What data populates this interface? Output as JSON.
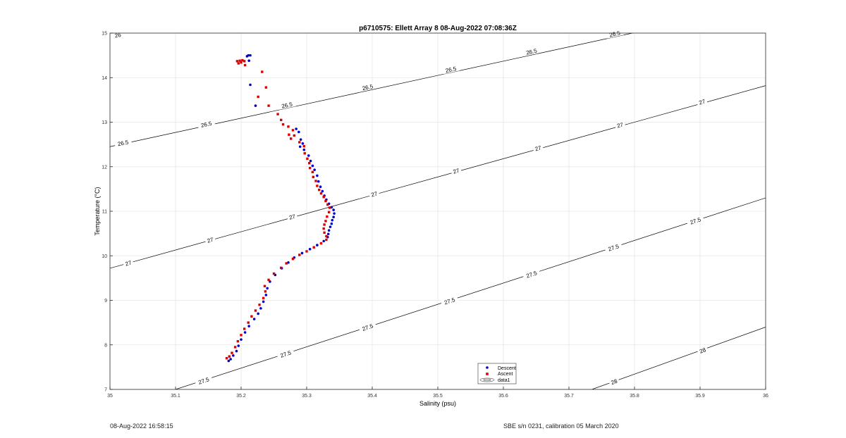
{
  "chart_data": {
    "type": "scatter",
    "title": "p6710575: Ellett Array 8 08-Aug-2022 07:08:36Z",
    "xlabel": "Salinity (psu)",
    "ylabel": "Temperature (°C)",
    "xlim": [
      35,
      36
    ],
    "ylim": [
      7,
      15
    ],
    "xticks": [
      "35",
      "35.1",
      "35.2",
      "35.3",
      "35.4",
      "35.5",
      "35.6",
      "35.7",
      "35.8",
      "35.9",
      "36"
    ],
    "yticks": [
      "7",
      "8",
      "9",
      "10",
      "11",
      "12",
      "13",
      "14",
      "15"
    ],
    "grid": true,
    "legend_position": "bottom-center",
    "legend": [
      "Descent",
      "Ascent",
      "data1"
    ],
    "colors": {
      "descent": "#0000cc",
      "ascent": "#dd0000",
      "contour": "#000000",
      "grid": "#e6e6e6"
    },
    "contours": [
      {
        "level": "26",
        "points": [
          [
            35.0,
            15.05
          ],
          [
            35.065,
            15.25
          ]
        ],
        "labels": [
          [
            35.012,
            14.95
          ]
        ]
      },
      {
        "level": "26.5",
        "points": [
          [
            35.0,
            12.45
          ],
          [
            36.0,
            15.65
          ]
        ],
        "labels": [
          [
            35.02,
            12.53
          ],
          [
            35.147,
            12.95
          ],
          [
            35.27,
            13.38
          ],
          [
            35.393,
            13.78
          ],
          [
            35.52,
            14.18
          ],
          [
            35.643,
            14.58
          ],
          [
            35.77,
            14.98
          ]
        ]
      },
      {
        "level": "27",
        "points": [
          [
            35.0,
            9.72
          ],
          [
            36.0,
            13.82
          ]
        ],
        "labels": [
          [
            35.028,
            9.83
          ],
          [
            35.153,
            10.35
          ],
          [
            35.278,
            10.87
          ],
          [
            35.403,
            11.38
          ],
          [
            35.528,
            11.9
          ],
          [
            35.653,
            12.41
          ],
          [
            35.778,
            12.93
          ],
          [
            35.903,
            13.45
          ]
        ]
      },
      {
        "level": "27.5",
        "points": [
          [
            35.1,
            7.0
          ],
          [
            36.0,
            11.3
          ]
        ],
        "labels": [
          [
            35.143,
            7.19
          ],
          [
            35.268,
            7.79
          ],
          [
            35.393,
            8.39
          ],
          [
            35.518,
            8.98
          ],
          [
            35.643,
            9.58
          ],
          [
            35.768,
            10.18
          ],
          [
            35.893,
            10.78
          ]
        ]
      },
      {
        "level": "28",
        "points": [
          [
            35.735,
            7.0
          ],
          [
            36.0,
            8.4
          ]
        ],
        "labels": [
          [
            35.769,
            7.17
          ],
          [
            35.904,
            7.87
          ]
        ]
      }
    ],
    "series": [
      {
        "name": "Descent",
        "points": [
          [
            35.211,
            14.5
          ],
          [
            35.214,
            14.5
          ],
          [
            35.209,
            14.48
          ],
          [
            35.212,
            14.38
          ],
          [
            35.214,
            13.84
          ],
          [
            35.222,
            13.37
          ],
          [
            35.284,
            12.85
          ],
          [
            35.288,
            12.78
          ],
          [
            35.291,
            12.61
          ],
          [
            35.294,
            12.52
          ],
          [
            35.29,
            12.45
          ],
          [
            35.296,
            12.38
          ],
          [
            35.303,
            12.25
          ],
          [
            35.306,
            12.13
          ],
          [
            35.309,
            12.02
          ],
          [
            35.312,
            11.93
          ],
          [
            35.316,
            11.8
          ],
          [
            35.318,
            11.67
          ],
          [
            35.321,
            11.55
          ],
          [
            35.324,
            11.45
          ],
          [
            35.327,
            11.35
          ],
          [
            35.33,
            11.26
          ],
          [
            35.334,
            11.17
          ],
          [
            35.338,
            11.09
          ],
          [
            35.341,
            11.03
          ],
          [
            35.342,
            10.95
          ],
          [
            35.341,
            10.87
          ],
          [
            35.339,
            10.8
          ],
          [
            35.338,
            10.72
          ],
          [
            35.336,
            10.65
          ],
          [
            35.334,
            10.57
          ],
          [
            35.333,
            10.49
          ],
          [
            35.332,
            10.42
          ],
          [
            35.326,
            10.33
          ],
          [
            35.316,
            10.24
          ],
          [
            35.305,
            10.15
          ],
          [
            35.293,
            10.06
          ],
          [
            35.281,
            9.96
          ],
          [
            35.272,
            9.85
          ],
          [
            35.262,
            9.72
          ],
          [
            35.252,
            9.57
          ],
          [
            35.244,
            9.42
          ],
          [
            35.24,
            9.27
          ],
          [
            35.238,
            9.12
          ],
          [
            35.234,
            8.97
          ],
          [
            35.23,
            8.82
          ],
          [
            35.226,
            8.7
          ],
          [
            35.22,
            8.58
          ],
          [
            35.212,
            8.42
          ],
          [
            35.206,
            8.28
          ],
          [
            35.2,
            8.12
          ],
          [
            35.196,
            7.98
          ],
          [
            35.193,
            7.86
          ],
          [
            35.188,
            7.76
          ],
          [
            35.184,
            7.68
          ],
          [
            35.181,
            7.64
          ]
        ]
      },
      {
        "name": "Ascent",
        "points": [
          [
            35.194,
            14.37
          ],
          [
            35.198,
            14.38
          ],
          [
            35.202,
            14.39
          ],
          [
            35.205,
            14.37
          ],
          [
            35.196,
            14.32
          ],
          [
            35.2,
            14.34
          ],
          [
            35.206,
            14.28
          ],
          [
            35.232,
            14.13
          ],
          [
            35.238,
            13.78
          ],
          [
            35.226,
            13.57
          ],
          [
            35.242,
            13.37
          ],
          [
            35.256,
            13.18
          ],
          [
            35.261,
            13.05
          ],
          [
            35.264,
            12.95
          ],
          [
            35.272,
            12.9
          ],
          [
            35.279,
            12.82
          ],
          [
            35.281,
            12.7
          ],
          [
            35.273,
            12.72
          ],
          [
            35.276,
            12.63
          ],
          [
            35.289,
            12.55
          ],
          [
            35.296,
            12.46
          ],
          [
            35.297,
            12.3
          ],
          [
            35.301,
            12.18
          ],
          [
            35.304,
            12.08
          ],
          [
            35.305,
            11.97
          ],
          [
            35.309,
            11.88
          ],
          [
            35.31,
            11.77
          ],
          [
            35.314,
            11.68
          ],
          [
            35.316,
            11.57
          ],
          [
            35.319,
            11.48
          ],
          [
            35.322,
            11.4
          ],
          [
            35.326,
            11.32
          ],
          [
            35.329,
            11.23
          ],
          [
            35.332,
            11.15
          ],
          [
            35.335,
            11.08
          ],
          [
            35.334,
            10.98
          ],
          [
            35.331,
            10.88
          ],
          [
            35.329,
            10.78
          ],
          [
            35.327,
            10.7
          ],
          [
            35.326,
            10.61
          ],
          [
            35.327,
            10.52
          ],
          [
            35.33,
            10.44
          ],
          [
            35.33,
            10.36
          ],
          [
            35.322,
            10.28
          ],
          [
            35.311,
            10.19
          ],
          [
            35.3,
            10.1
          ],
          [
            35.289,
            10.02
          ],
          [
            35.279,
            9.93
          ],
          [
            35.269,
            9.83
          ],
          [
            35.261,
            9.73
          ],
          [
            35.25,
            9.6
          ],
          [
            35.242,
            9.46
          ],
          [
            35.236,
            9.32
          ],
          [
            35.237,
            9.2
          ],
          [
            35.234,
            9.05
          ],
          [
            35.228,
            8.9
          ],
          [
            35.222,
            8.77
          ],
          [
            35.216,
            8.64
          ],
          [
            35.211,
            8.5
          ],
          [
            35.205,
            8.36
          ],
          [
            35.2,
            8.22
          ],
          [
            35.195,
            8.08
          ],
          [
            35.191,
            7.95
          ],
          [
            35.186,
            7.82
          ],
          [
            35.182,
            7.74
          ],
          [
            35.178,
            7.7
          ]
        ]
      }
    ]
  },
  "footer": {
    "left": "08-Aug-2022 16:58:15",
    "right": "SBE s/n 0231, calibration 05 March 2020"
  }
}
